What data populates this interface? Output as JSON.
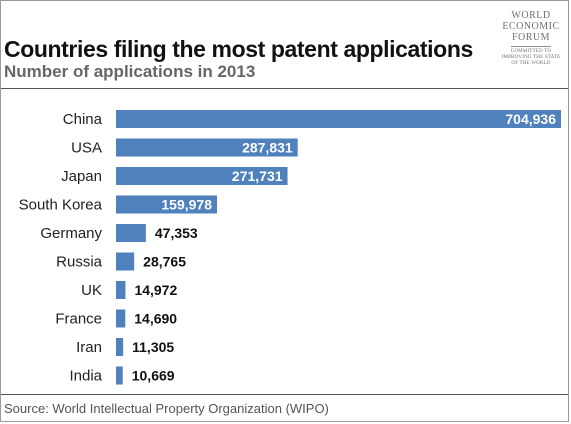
{
  "logo": {
    "lines": [
      "WORLD",
      "ECONOMIC",
      "FORUM"
    ],
    "tagline": [
      "COMMITTED TO",
      "IMPROVING THE STATE",
      "OF THE WORLD"
    ]
  },
  "source": "Source: World Intellectual Property Organization (WIPO)",
  "colors": {
    "bar": "#4f81bd",
    "label_inside": "#ffffff",
    "label_outside": "#111111"
  },
  "chart_data": {
    "type": "bar",
    "orientation": "horizontal",
    "title": "Countries filing the most patent applications",
    "subtitle": "Number of applications in 2013",
    "categories": [
      "China",
      "USA",
      "Japan",
      "South Korea",
      "Germany",
      "Russia",
      "UK",
      "France",
      "Iran",
      "India"
    ],
    "values": [
      704936,
      287831,
      271731,
      159978,
      47353,
      28765,
      14972,
      14690,
      11305,
      10669
    ],
    "value_labels": [
      "704,936",
      "287,831",
      "271,731",
      "159,978",
      "47,353",
      "28,765",
      "14,972",
      "14,690",
      "11,305",
      "10,669"
    ],
    "xlabel": "",
    "ylabel": "",
    "xlim": [
      0,
      704936
    ],
    "grid": false,
    "legend": "none"
  }
}
